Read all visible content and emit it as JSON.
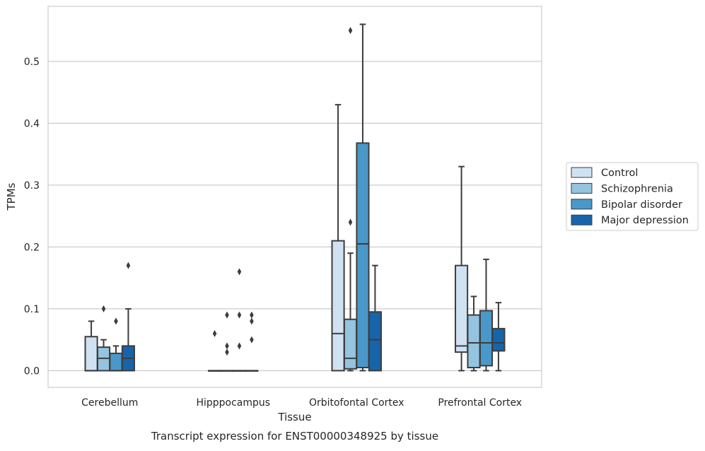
{
  "chart_data": {
    "type": "box",
    "caption": "Transcript expression for ENST00000348925 by tissue",
    "xlabel": "Tissue",
    "ylabel": "TPMs",
    "ylim": [
      -0.027,
      0.589
    ],
    "yticks": [
      0.0,
      0.1,
      0.2,
      0.3,
      0.4,
      0.5
    ],
    "ytick_labels": [
      "0.0",
      "0.1",
      "0.2",
      "0.3",
      "0.4",
      "0.5"
    ],
    "grid": "horizontal",
    "legend_position": "right",
    "categories": [
      "Cerebellum",
      "Hipppocampus",
      "Orbitofontal Cortex",
      "Prefrontal Cortex"
    ],
    "series": [
      {
        "name": "Control",
        "color": "#d0e1f2",
        "boxes": [
          {
            "q1": 0.0,
            "median": 0.0,
            "q3": 0.055,
            "whislo": 0.0,
            "whishi": 0.08,
            "fliers": []
          },
          {
            "q1": 0.0,
            "median": 0.0,
            "q3": 0.0,
            "whislo": 0.0,
            "whishi": 0.0,
            "fliers": [
              0.06
            ]
          },
          {
            "q1": 0.0,
            "median": 0.06,
            "q3": 0.21,
            "whislo": 0.0,
            "whishi": 0.43,
            "fliers": []
          },
          {
            "q1": 0.03,
            "median": 0.04,
            "q3": 0.17,
            "whislo": 0.0,
            "whishi": 0.33,
            "fliers": []
          }
        ]
      },
      {
        "name": "Schizophrenia",
        "color": "#94c4df",
        "boxes": [
          {
            "q1": 0.0,
            "median": 0.02,
            "q3": 0.038,
            "whislo": 0.0,
            "whishi": 0.05,
            "fliers": [
              0.1
            ]
          },
          {
            "q1": 0.0,
            "median": 0.0,
            "q3": 0.0,
            "whislo": 0.0,
            "whishi": 0.0,
            "fliers": [
              0.03,
              0.04,
              0.09
            ]
          },
          {
            "q1": 0.003,
            "median": 0.02,
            "q3": 0.083,
            "whislo": 0.0,
            "whishi": 0.19,
            "fliers": [
              0.24,
              0.55
            ]
          },
          {
            "q1": 0.005,
            "median": 0.045,
            "q3": 0.09,
            "whislo": 0.0,
            "whishi": 0.12,
            "fliers": []
          }
        ]
      },
      {
        "name": "Bipolar disorder",
        "color": "#4a98c9",
        "boxes": [
          {
            "q1": 0.0,
            "median": 0.0,
            "q3": 0.028,
            "whislo": 0.0,
            "whishi": 0.04,
            "fliers": [
              0.08
            ]
          },
          {
            "q1": 0.0,
            "median": 0.0,
            "q3": 0.0,
            "whislo": 0.0,
            "whishi": 0.0,
            "fliers": [
              0.04,
              0.09,
              0.16
            ]
          },
          {
            "q1": 0.005,
            "median": 0.205,
            "q3": 0.368,
            "whislo": 0.0,
            "whishi": 0.56,
            "fliers": []
          },
          {
            "q1": 0.008,
            "median": 0.045,
            "q3": 0.097,
            "whislo": 0.0,
            "whishi": 0.18,
            "fliers": []
          }
        ]
      },
      {
        "name": "Major depression",
        "color": "#1764ab",
        "boxes": [
          {
            "q1": 0.0,
            "median": 0.02,
            "q3": 0.04,
            "whislo": 0.0,
            "whishi": 0.1,
            "fliers": [
              0.17
            ]
          },
          {
            "q1": 0.0,
            "median": 0.0,
            "q3": 0.0,
            "whislo": 0.0,
            "whishi": 0.0,
            "fliers": [
              0.05,
              0.08,
              0.09
            ]
          },
          {
            "q1": 0.0,
            "median": 0.05,
            "q3": 0.095,
            "whislo": 0.0,
            "whishi": 0.17,
            "fliers": []
          },
          {
            "q1": 0.032,
            "median": 0.045,
            "q3": 0.068,
            "whislo": 0.0,
            "whishi": 0.11,
            "fliers": []
          }
        ]
      }
    ]
  }
}
